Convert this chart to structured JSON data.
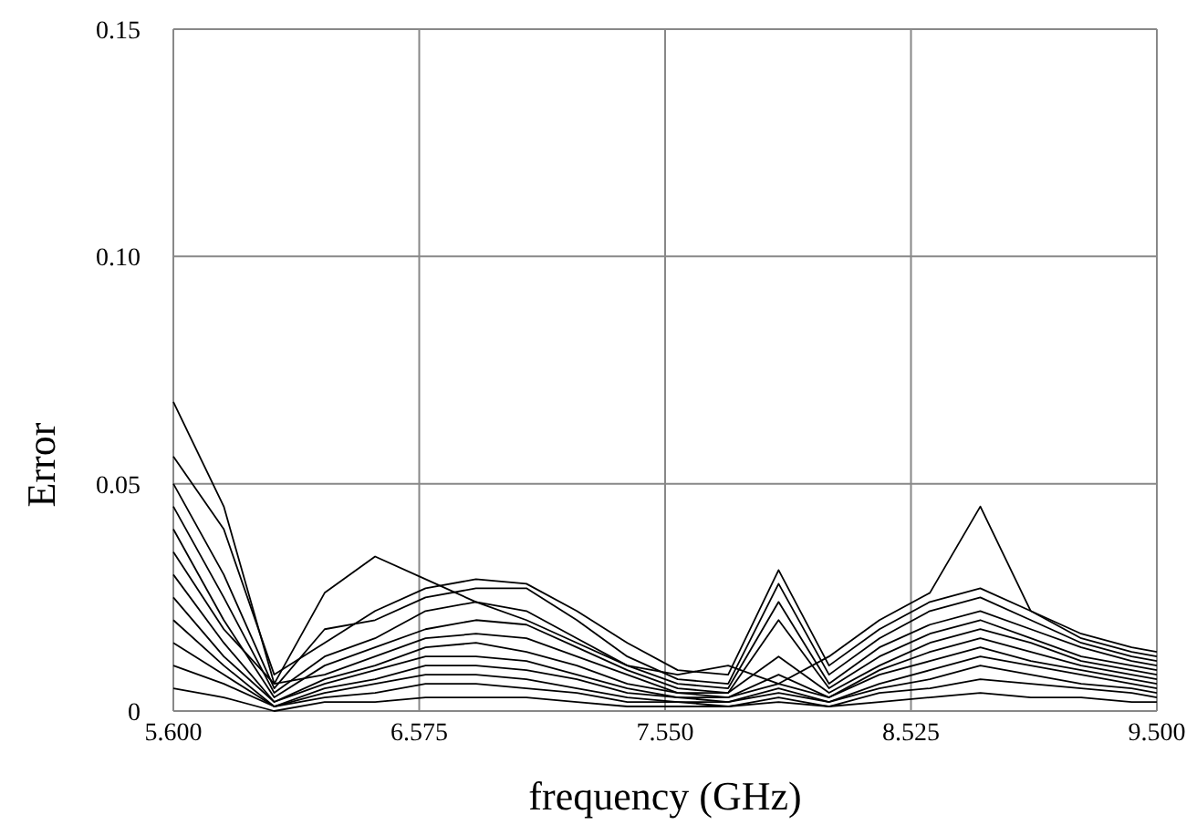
{
  "chart_data": {
    "type": "line",
    "xlabel": "frequency (GHz)",
    "ylabel": "Error",
    "x": [
      5.6,
      5.8,
      6.0,
      6.2,
      6.4,
      6.6,
      6.8,
      7.0,
      7.2,
      7.4,
      7.6,
      7.8,
      8.0,
      8.2,
      8.4,
      8.6,
      8.8,
      9.0,
      9.2,
      9.4,
      9.5
    ],
    "xlim": [
      5.6,
      9.5
    ],
    "xticks": [
      {
        "value": 5.6,
        "label": "5.600"
      },
      {
        "value": 6.575,
        "label": "6.575"
      },
      {
        "value": 7.55,
        "label": "7.550"
      },
      {
        "value": 8.525,
        "label": "8.525"
      },
      {
        "value": 9.5,
        "label": "9.500"
      }
    ],
    "ylim": [
      0,
      0.15
    ],
    "yticks": [
      {
        "value": 0,
        "label": "0"
      },
      {
        "value": 0.05,
        "label": "0.05"
      },
      {
        "value": 0.1,
        "label": "0.10"
      },
      {
        "value": 0.15,
        "label": "0.15"
      }
    ],
    "grid": true,
    "marker": "none",
    "line_style": "solid",
    "series": [
      {
        "color": "#000000",
        "values": [
          0.068,
          0.045,
          0.006,
          0.026,
          0.034,
          0.029,
          0.024,
          0.02,
          0.015,
          0.01,
          0.008,
          0.01,
          0.006,
          0.012,
          0.02,
          0.026,
          0.045,
          0.022,
          0.016,
          0.013,
          0.012
        ]
      },
      {
        "color": "#000000",
        "values": [
          0.056,
          0.04,
          0.008,
          0.015,
          0.022,
          0.027,
          0.029,
          0.028,
          0.022,
          0.015,
          0.009,
          0.008,
          0.031,
          0.01,
          0.018,
          0.024,
          0.027,
          0.022,
          0.017,
          0.014,
          0.013
        ]
      },
      {
        "color": "#000000",
        "values": [
          0.05,
          0.03,
          0.005,
          0.018,
          0.02,
          0.025,
          0.027,
          0.027,
          0.02,
          0.012,
          0.007,
          0.006,
          0.028,
          0.008,
          0.016,
          0.022,
          0.025,
          0.02,
          0.015,
          0.012,
          0.011
        ]
      },
      {
        "color": "#000000",
        "values": [
          0.045,
          0.025,
          0.004,
          0.012,
          0.016,
          0.022,
          0.024,
          0.022,
          0.016,
          0.01,
          0.006,
          0.005,
          0.024,
          0.006,
          0.014,
          0.019,
          0.022,
          0.018,
          0.014,
          0.011,
          0.01
        ]
      },
      {
        "color": "#000000",
        "values": [
          0.04,
          0.02,
          0.003,
          0.01,
          0.014,
          0.018,
          0.02,
          0.019,
          0.014,
          0.009,
          0.005,
          0.004,
          0.02,
          0.005,
          0.012,
          0.017,
          0.02,
          0.016,
          0.012,
          0.01,
          0.009
        ]
      },
      {
        "color": "#000000",
        "values": [
          0.035,
          0.018,
          0.006,
          0.008,
          0.012,
          0.016,
          0.017,
          0.016,
          0.012,
          0.008,
          0.004,
          0.004,
          0.012,
          0.004,
          0.01,
          0.015,
          0.018,
          0.015,
          0.011,
          0.009,
          0.008
        ]
      },
      {
        "color": "#000000",
        "values": [
          0.03,
          0.015,
          0.002,
          0.007,
          0.01,
          0.014,
          0.015,
          0.013,
          0.01,
          0.006,
          0.004,
          0.003,
          0.008,
          0.003,
          0.009,
          0.013,
          0.016,
          0.013,
          0.01,
          0.008,
          0.007
        ]
      },
      {
        "color": "#000000",
        "values": [
          0.025,
          0.012,
          0.002,
          0.006,
          0.009,
          0.012,
          0.012,
          0.011,
          0.008,
          0.005,
          0.003,
          0.003,
          0.006,
          0.003,
          0.008,
          0.011,
          0.014,
          0.011,
          0.009,
          0.007,
          0.006
        ]
      },
      {
        "color": "#000000",
        "values": [
          0.02,
          0.01,
          0.001,
          0.005,
          0.007,
          0.01,
          0.01,
          0.009,
          0.007,
          0.004,
          0.003,
          0.002,
          0.005,
          0.002,
          0.006,
          0.009,
          0.012,
          0.01,
          0.008,
          0.006,
          0.005
        ]
      },
      {
        "color": "#000000",
        "values": [
          0.015,
          0.008,
          0.001,
          0.004,
          0.006,
          0.008,
          0.008,
          0.007,
          0.005,
          0.003,
          0.002,
          0.002,
          0.004,
          0.002,
          0.005,
          0.007,
          0.01,
          0.008,
          0.006,
          0.005,
          0.004
        ]
      },
      {
        "color": "#000000",
        "values": [
          0.01,
          0.006,
          0.001,
          0.003,
          0.004,
          0.006,
          0.006,
          0.005,
          0.004,
          0.002,
          0.002,
          0.001,
          0.003,
          0.001,
          0.004,
          0.005,
          0.007,
          0.006,
          0.005,
          0.004,
          0.003
        ]
      },
      {
        "color": "#000000",
        "values": [
          0.005,
          0.003,
          0.0,
          0.002,
          0.002,
          0.003,
          0.003,
          0.003,
          0.002,
          0.001,
          0.001,
          0.001,
          0.002,
          0.001,
          0.002,
          0.003,
          0.004,
          0.003,
          0.003,
          0.002,
          0.002
        ]
      }
    ]
  }
}
